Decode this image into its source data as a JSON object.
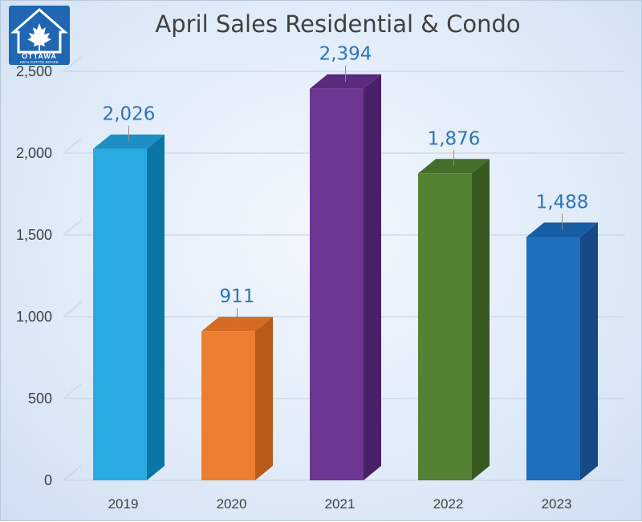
{
  "logo": {
    "line1": "OTTAWA",
    "line2": "REAL ESTATE BOARD"
  },
  "chart_data": {
    "type": "bar",
    "title": "April Sales Residential & Condo",
    "categories": [
      "2019",
      "2020",
      "2021",
      "2022",
      "2023"
    ],
    "values": [
      2026,
      911,
      2394,
      1876,
      1488
    ],
    "value_labels": [
      "2,026",
      "911",
      "2,394",
      "1,876",
      "1,488"
    ],
    "colors": [
      "#29abe2",
      "#ed7d31",
      "#6e3693",
      "#548235",
      "#1f6fbf"
    ],
    "side_colors": [
      "#0a76a6",
      "#b85a1a",
      "#4a2068",
      "#385a22",
      "#154a86"
    ],
    "top_colors": [
      "#1e8fc4",
      "#d46a24",
      "#5a2a7e",
      "#456d2b",
      "#175da3"
    ],
    "ylim": [
      0,
      2500
    ],
    "yticks": [
      0,
      500,
      1000,
      1500,
      2000,
      2500
    ],
    "ytick_labels": [
      "0",
      "500",
      "1,000",
      "1,500",
      "2,000",
      "2,500"
    ],
    "grid": true,
    "style": "3d-column"
  }
}
